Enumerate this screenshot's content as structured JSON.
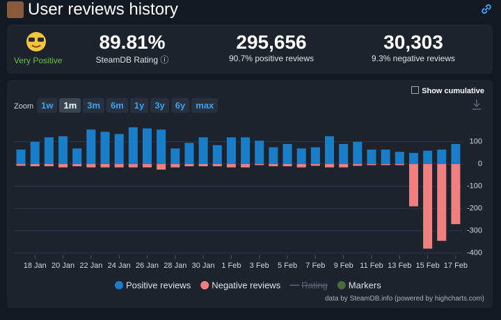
{
  "header": {
    "title": "User reviews history"
  },
  "stats": [
    {
      "value": "89.81%",
      "label": "SteamDB Rating",
      "note": "Very Positive"
    },
    {
      "value": "295,656",
      "label": "90.7% positive reviews"
    },
    {
      "value": "30,303",
      "label": "9.3% negative reviews"
    }
  ],
  "controls": {
    "zoom_label": "Zoom",
    "zoom": [
      "1w",
      "1m",
      "3m",
      "6m",
      "1y",
      "3y",
      "6y",
      "max"
    ],
    "active": "1m",
    "cumulative": "Show cumulative"
  },
  "credits": "data by SteamDB.info (powered by highcharts.com)",
  "chart_data": {
    "type": "bar",
    "categories": [
      null,
      "18 Jan",
      null,
      "20 Jan",
      null,
      "22 Jan",
      null,
      "24 Jan",
      null,
      "26 Jan",
      null,
      "28 Jan",
      null,
      "30 Jan",
      null,
      "1 Feb",
      null,
      "3 Feb",
      null,
      "5 Feb",
      null,
      "7 Feb",
      null,
      "9 Feb",
      null,
      "11 Feb",
      null,
      "13 Feb",
      null,
      "15 Feb",
      null,
      "17 Feb"
    ],
    "series": [
      {
        "name": "Positive reviews",
        "color": "#1a7dc8",
        "values": [
          65,
          100,
          120,
          125,
          70,
          155,
          145,
          135,
          165,
          160,
          155,
          70,
          95,
          120,
          85,
          120,
          120,
          105,
          75,
          90,
          70,
          75,
          125,
          90,
          100,
          65,
          65,
          55,
          50,
          60,
          65,
          90
        ]
      },
      {
        "name": "Negative reviews",
        "color": "#f08080",
        "values": [
          -8,
          -10,
          -10,
          -15,
          -10,
          -15,
          -15,
          -15,
          -15,
          -15,
          -25,
          -15,
          -10,
          -10,
          -10,
          -15,
          -15,
          -5,
          -10,
          -10,
          -15,
          -8,
          -15,
          -15,
          -8,
          -5,
          -5,
          -5,
          -190,
          -380,
          -345,
          -270
        ]
      }
    ],
    "hidden_legend": [
      {
        "name": "Rating",
        "color": "#5a6a7a"
      },
      {
        "name": "Markers",
        "color": "#4a6a3a"
      }
    ],
    "ylim": [
      -410,
      215
    ],
    "yticks": [
      -400,
      -300,
      -200,
      -100,
      0,
      100
    ],
    "grid": true
  }
}
